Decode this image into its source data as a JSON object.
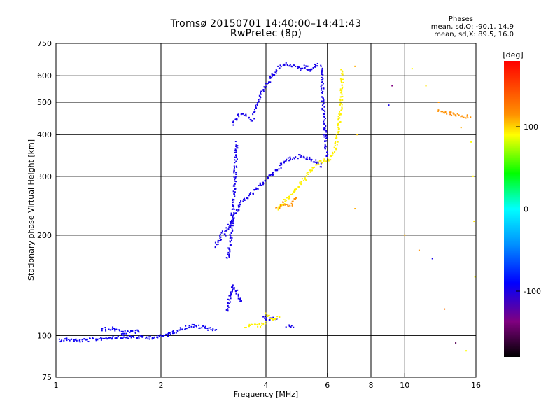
{
  "header": {
    "title": "Tromsø 20150701 14:40:00–14:41:43",
    "subtitle": "RwPretec (8p)"
  },
  "phase_info": {
    "heading": "Phases",
    "o_line": "mean, sd,O: -90.1, 14.9",
    "x_line": "mean, sd,X:  89.5, 16.0"
  },
  "colorbar": {
    "unit": "[deg]",
    "range": [
      -180,
      180
    ],
    "tick_labels": [
      "100",
      "0",
      "-100"
    ],
    "tick_values": [
      100,
      0,
      -100
    ],
    "colors": {
      "180": "#ff0000",
      "120": "#ffa000",
      "90": "#ffff00",
      "30": "#00ff00",
      "-30": "#00ffff",
      "-90": "#0000ff",
      "-150": "#800080",
      "-180": "#000000"
    }
  },
  "chart_data": {
    "type": "scatter",
    "xlabel": "Frequency [MHz]",
    "ylabel": "Stationary phase Virtual Height [km]",
    "xscale": "log",
    "yscale": "log",
    "xlim": [
      1,
      16
    ],
    "ylim": [
      75,
      750
    ],
    "x_ticks": [
      1,
      2,
      4,
      6,
      8,
      10,
      16
    ],
    "x_tick_labels": [
      "1",
      "2",
      "4",
      "6",
      "8",
      "10",
      "16"
    ],
    "x_gridlines": [
      2,
      4,
      6,
      8,
      10
    ],
    "y_ticks": [
      75,
      100,
      200,
      300,
      400,
      500,
      600,
      750
    ],
    "y_tick_labels": [
      "75",
      "100",
      "200",
      "300",
      "400",
      "500",
      "600",
      "750"
    ],
    "y_gridlines": [
      100,
      200,
      300,
      400,
      500,
      600
    ],
    "grid": true,
    "series": [
      {
        "description_phase_deg": -95,
        "segments": [
          {
            "x": [
              1.02,
              1.08,
              1.15,
              1.25,
              1.35,
              1.5,
              1.65,
              1.8,
              1.95
            ],
            "y": [
              97,
              97.5,
              96.5,
              97,
              98,
              99,
              99,
              98.5,
              99
            ]
          },
          {
            "x": [
              1.95,
              2.05,
              2.15,
              2.3,
              2.45,
              2.6,
              2.75,
              2.9
            ],
            "y": [
              99,
              100,
              102,
              105,
              107,
              106,
              105,
              104
            ]
          },
          {
            "x": [
              1.35,
              1.45,
              1.55,
              1.75
            ],
            "y": [
              104,
              105,
              102,
              103
            ]
          }
        ]
      },
      {
        "description_phase_deg": -100,
        "segments": [
          {
            "x": [
              3.05,
              3.15,
              3.25,
              3.35,
              3.5,
              3.7,
              3.9,
              4.1,
              4.3,
              4.5,
              4.7,
              5.0,
              5.3,
              5.6,
              5.8
            ],
            "y": [
              200,
              215,
              230,
              245,
              258,
              270,
              285,
              300,
              315,
              330,
              340,
              345,
              340,
              330,
              320
            ]
          },
          {
            "x": [
              3.2,
              3.3,
              3.4,
              3.5,
              3.6,
              3.7
            ],
            "y": [
              430,
              450,
              460,
              455,
              445,
              440
            ]
          },
          {
            "x": [
              3.7,
              3.85,
              4.0,
              4.2,
              4.4,
              4.6,
              4.8,
              5.0,
              5.2,
              5.4,
              5.6,
              5.75
            ],
            "y": [
              460,
              520,
              560,
              600,
              640,
              650,
              640,
              630,
              640,
              620,
              650,
              640
            ]
          },
          {
            "x": [
              5.75,
              5.8,
              5.85,
              5.9,
              5.95,
              6.0
            ],
            "y": [
              640,
              560,
              480,
              420,
              370,
              340
            ]
          },
          {
            "x": [
              3.1,
              3.15,
              3.2,
              3.25,
              3.3
            ],
            "y": [
              170,
              185,
              220,
              280,
              380
            ]
          },
          {
            "x": [
              2.85,
              2.95,
              3.0
            ],
            "y": [
              185,
              195,
              205
            ]
          },
          {
            "x": [
              3.1,
              3.15,
              3.2,
              3.3,
              3.4
            ],
            "y": [
              118,
              130,
              140,
              135,
              125
            ]
          },
          {
            "x": [
              3.9,
              4.1,
              4.3
            ],
            "y": [
              113,
              112,
              113
            ]
          },
          {
            "x": [
              4.6,
              4.8
            ],
            "y": [
              106,
              107
            ]
          }
        ]
      },
      {
        "description_phase_deg": 95,
        "segments": [
          {
            "x": [
              4.3,
              4.5,
              4.7,
              4.9,
              5.1,
              5.3,
              5.5,
              5.7,
              5.9
            ],
            "y": [
              240,
              250,
              262,
              275,
              290,
              305,
              320,
              330,
              335
            ]
          },
          {
            "x": [
              5.9,
              6.1,
              6.3,
              6.45,
              6.55,
              6.6,
              6.62
            ],
            "y": [
              335,
              340,
              360,
              410,
              480,
              560,
              630
            ]
          },
          {
            "x": [
              3.5,
              3.6,
              3.7,
              3.8,
              4.0
            ],
            "y": [
              106,
              107,
              108,
              107,
              110
            ]
          },
          {
            "x": [
              4.0,
              4.2,
              4.4
            ],
            "y": [
              116,
              112,
              114
            ]
          }
        ]
      },
      {
        "description_phase_deg": 130,
        "segments": [
          {
            "x": [
              4.3,
              4.5,
              4.7,
              4.9
            ],
            "y": [
              240,
              250,
              245,
              260
            ]
          },
          {
            "x": [
              12.5,
              14.0,
              15.5
            ],
            "y": [
              470,
              460,
              450
            ]
          }
        ]
      }
    ],
    "sparse_points_deg": {
      "x": [
        7.2,
        7.3,
        7.2,
        9.2,
        9.0,
        10.5,
        11.5,
        12.5,
        13.5,
        14.5,
        15.5,
        15.7,
        15.8,
        15.9,
        10.0,
        11.0,
        12.0,
        13.0,
        14.0,
        15.0
      ],
      "y": [
        640,
        400,
        240,
        560,
        490,
        630,
        560,
        500,
        460,
        420,
        380,
        300,
        220,
        150,
        200,
        180,
        170,
        120,
        95,
        90
      ],
      "phase": [
        120,
        110,
        120,
        -150,
        -100,
        90,
        100,
        130,
        140,
        120,
        90,
        95,
        100,
        90,
        120,
        130,
        -100,
        140,
        -160,
        90
      ]
    }
  }
}
